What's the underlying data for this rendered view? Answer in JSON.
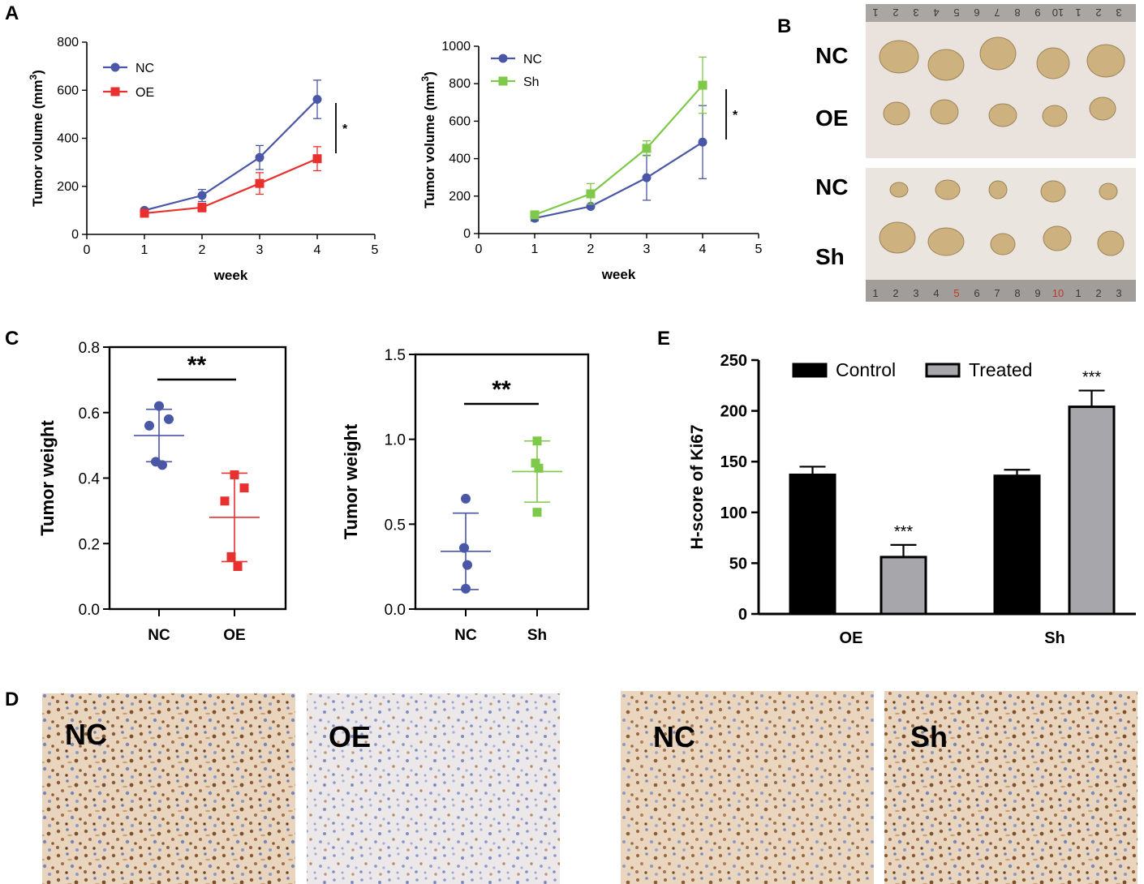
{
  "panel_letters": {
    "a": "A",
    "b": "B",
    "c": "C",
    "d": "D",
    "e": "E"
  },
  "colors": {
    "nc": "#4a57a6",
    "oe": "#e8312f",
    "sh": "#7ec94a",
    "control": "#000000",
    "treated": "#a7a7ab",
    "tissue_bg": "#efe3d6",
    "tumor": "#cdb280",
    "ruler": "#9a9897"
  },
  "photos": {
    "top": {
      "row1_label": "NC",
      "row2_label": "OE"
    },
    "bottom": {
      "row1_label": "NC",
      "row2_label": "Sh"
    },
    "ruler_top_numbers": [
      "1",
      "2",
      "3",
      "4",
      "5",
      "6",
      "7",
      "8",
      "9",
      "10",
      "1",
      "2",
      "3"
    ],
    "ruler_bottom_numbers": [
      "1",
      "2",
      "3",
      "4",
      "5",
      "6",
      "7",
      "8",
      "9",
      "10",
      "1",
      "2",
      "3"
    ]
  },
  "ihc": {
    "labels": [
      "NC",
      "OE",
      "NC",
      "Sh"
    ]
  },
  "chart_data": [
    {
      "id": "A-left",
      "type": "line",
      "title": "",
      "xlabel": "week",
      "ylabel": "Tumor volume (mm",
      "ylabel_sup": "3",
      "ylabel_end": ")",
      "xlim": [
        0,
        5
      ],
      "ylim": [
        0,
        800
      ],
      "xticks": [
        "0",
        "1",
        "2",
        "3",
        "4",
        "5"
      ],
      "yticks": [
        "0",
        "200",
        "400",
        "600",
        "800"
      ],
      "series": [
        {
          "name": "NC",
          "x": [
            1,
            2,
            3,
            4
          ],
          "y": [
            100,
            162,
            320,
            562
          ],
          "err": [
            8,
            25,
            50,
            80
          ],
          "marker": "circle"
        },
        {
          "name": "OE",
          "x": [
            1,
            2,
            3,
            4
          ],
          "y": [
            88,
            112,
            212,
            315
          ],
          "err": [
            5,
            18,
            45,
            50
          ],
          "marker": "square"
        }
      ],
      "annotation": "*",
      "legend": "top-left"
    },
    {
      "id": "A-right",
      "type": "line",
      "title": "",
      "xlabel": "week",
      "ylabel": "Tumor volume (mm",
      "ylabel_sup": "3",
      "ylabel_end": ")",
      "xlim": [
        0,
        5
      ],
      "ylim": [
        0,
        1000
      ],
      "xticks": [
        "0",
        "1",
        "2",
        "3",
        "4",
        "5"
      ],
      "yticks": [
        "0",
        "200",
        "400",
        "600",
        "800",
        "1000"
      ],
      "series": [
        {
          "name": "NC",
          "x": [
            1,
            2,
            3,
            4
          ],
          "y": [
            82,
            145,
            298,
            488
          ],
          "err": [
            15,
            10,
            120,
            195
          ],
          "marker": "circle"
        },
        {
          "name": "Sh",
          "x": [
            1,
            2,
            3,
            4
          ],
          "y": [
            100,
            212,
            455,
            792
          ],
          "err": [
            15,
            55,
            40,
            150
          ],
          "marker": "square"
        }
      ],
      "annotation": "*",
      "legend": "top-left"
    },
    {
      "id": "C-left",
      "type": "scatter",
      "ylabel": "Tumor weight",
      "ylim": [
        0,
        0.8
      ],
      "yticks": [
        "0.0",
        "0.2",
        "0.4",
        "0.6",
        "0.8"
      ],
      "categories": [
        "NC",
        "OE"
      ],
      "series": [
        {
          "name": "NC",
          "points": [
            0.62,
            0.58,
            0.56,
            0.45,
            0.44
          ],
          "mean": 0.53,
          "sd": 0.08,
          "marker": "circle"
        },
        {
          "name": "OE",
          "points": [
            0.41,
            0.37,
            0.33,
            0.16,
            0.13
          ],
          "mean": 0.28,
          "sd": 0.135,
          "marker": "square"
        }
      ],
      "annotation": "**"
    },
    {
      "id": "C-right",
      "type": "scatter",
      "ylabel": "Tumor weight",
      "ylim": [
        0,
        1.5
      ],
      "yticks": [
        "0.0",
        "0.5",
        "1.0",
        "1.5"
      ],
      "categories": [
        "NC",
        "Sh"
      ],
      "series": [
        {
          "name": "NC",
          "points": [
            0.65,
            0.36,
            0.26,
            0.12
          ],
          "mean": 0.34,
          "sd": 0.225,
          "marker": "circle"
        },
        {
          "name": "Sh",
          "points": [
            0.99,
            0.86,
            0.83,
            0.57
          ],
          "mean": 0.81,
          "sd": 0.18,
          "marker": "square"
        }
      ],
      "annotation": "**"
    },
    {
      "id": "E",
      "type": "bar",
      "ylabel": "H-score of Ki67",
      "ylim": [
        0,
        250
      ],
      "yticks": [
        "0",
        "50",
        "100",
        "150",
        "200",
        "250"
      ],
      "categories": [
        "OE",
        "Sh"
      ],
      "series": [
        {
          "name": "Control",
          "values": [
            137,
            136
          ],
          "err": [
            8,
            6
          ]
        },
        {
          "name": "Treated",
          "values": [
            56,
            204
          ],
          "err": [
            12,
            16
          ]
        }
      ],
      "annotations": [
        "***",
        "***"
      ],
      "legend": "top"
    }
  ]
}
